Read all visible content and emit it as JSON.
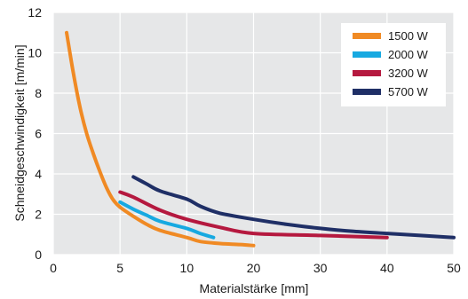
{
  "chart_data": {
    "type": "line",
    "title": "",
    "xlabel": "Materialstärke [mm]",
    "ylabel": "Schneidgeschwindigkeit [m/min]",
    "xlim": [
      0,
      50
    ],
    "ylim": [
      0,
      12
    ],
    "x_ticks": [
      0,
      5,
      10,
      20,
      30,
      40,
      50
    ],
    "x_tick_labels": [
      "0",
      "5",
      "10",
      "20",
      "30",
      "40",
      "50"
    ],
    "y_ticks": [
      0,
      2,
      4,
      6,
      8,
      10,
      12
    ],
    "y_tick_labels": [
      "0",
      "2",
      "4",
      "6",
      "8",
      "10",
      "12"
    ],
    "grid": true,
    "legend_position": "top-right",
    "background_color": "#e6e7e8",
    "grid_color": "#ffffff",
    "series": [
      {
        "name": "1500 W",
        "color": "#f08a24",
        "points": [
          [
            1,
            11
          ],
          [
            1.5,
            9
          ],
          [
            2,
            7.3
          ],
          [
            2.5,
            6
          ],
          [
            3,
            5
          ],
          [
            3.5,
            4.1
          ],
          [
            4,
            3.3
          ],
          [
            4.5,
            2.7
          ],
          [
            5,
            2.35
          ],
          [
            6,
            1.9
          ],
          [
            7,
            1.5
          ],
          [
            8,
            1.2
          ],
          [
            10,
            0.85
          ],
          [
            12,
            0.65
          ],
          [
            15,
            0.55
          ],
          [
            18,
            0.5
          ],
          [
            20,
            0.45
          ]
        ]
      },
      {
        "name": "2000 W",
        "color": "#17a9e1",
        "points": [
          [
            5,
            2.6
          ],
          [
            6,
            2.25
          ],
          [
            7,
            1.95
          ],
          [
            8,
            1.65
          ],
          [
            10,
            1.3
          ],
          [
            12,
            1.05
          ],
          [
            14,
            0.85
          ]
        ]
      },
      {
        "name": "3200 W",
        "color": "#b5193f",
        "points": [
          [
            5,
            3.1
          ],
          [
            6,
            2.85
          ],
          [
            8,
            2.2
          ],
          [
            10,
            1.75
          ],
          [
            15,
            1.35
          ],
          [
            20,
            1.05
          ],
          [
            30,
            0.95
          ],
          [
            40,
            0.85
          ]
        ]
      },
      {
        "name": "5700 W",
        "color": "#1f2f66",
        "points": [
          [
            6,
            3.85
          ],
          [
            7,
            3.5
          ],
          [
            8,
            3.15
          ],
          [
            10,
            2.75
          ],
          [
            12,
            2.4
          ],
          [
            15,
            2.05
          ],
          [
            20,
            1.75
          ],
          [
            25,
            1.5
          ],
          [
            30,
            1.3
          ],
          [
            35,
            1.15
          ],
          [
            40,
            1.05
          ],
          [
            45,
            0.95
          ],
          [
            50,
            0.85
          ]
        ]
      }
    ]
  }
}
